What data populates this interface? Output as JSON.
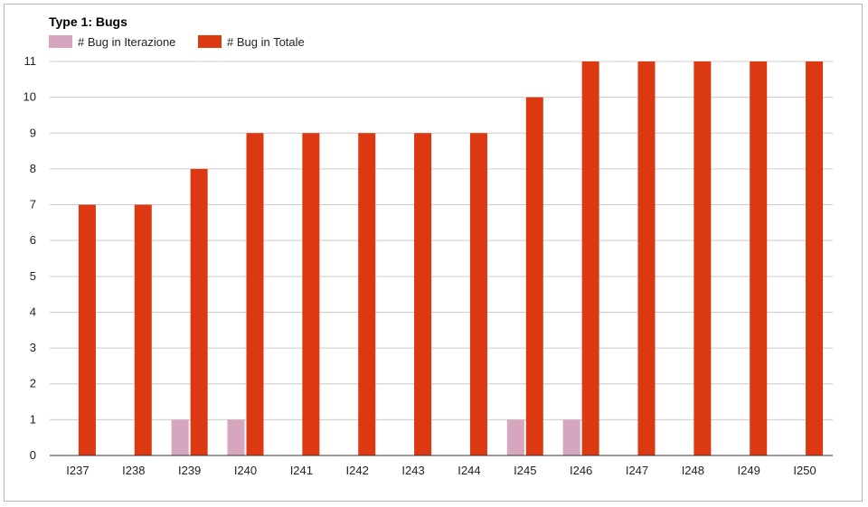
{
  "chart_data": {
    "type": "bar",
    "title": "Type 1: Bugs",
    "xlabel": "",
    "ylabel": "",
    "categories": [
      "I237",
      "I238",
      "I239",
      "I240",
      "I241",
      "I242",
      "I243",
      "I244",
      "I245",
      "I246",
      "I247",
      "I248",
      "I249",
      "I250"
    ],
    "series": [
      {
        "name": "# Bug in Iterazione",
        "color": "#d5a6bd",
        "values": [
          0,
          0,
          1,
          1,
          0,
          0,
          0,
          0,
          1,
          1,
          0,
          0,
          0,
          0
        ]
      },
      {
        "name": "# Bug in Totale",
        "color": "#dc3912",
        "values": [
          7,
          7,
          8,
          9,
          9,
          9,
          9,
          9,
          10,
          11,
          11,
          11,
          11,
          11
        ]
      }
    ],
    "ylim": [
      0,
      11
    ],
    "yticks": [
      0,
      1,
      2,
      3,
      4,
      5,
      6,
      7,
      8,
      9,
      10,
      11
    ],
    "grid": true,
    "legend": "top-left"
  }
}
